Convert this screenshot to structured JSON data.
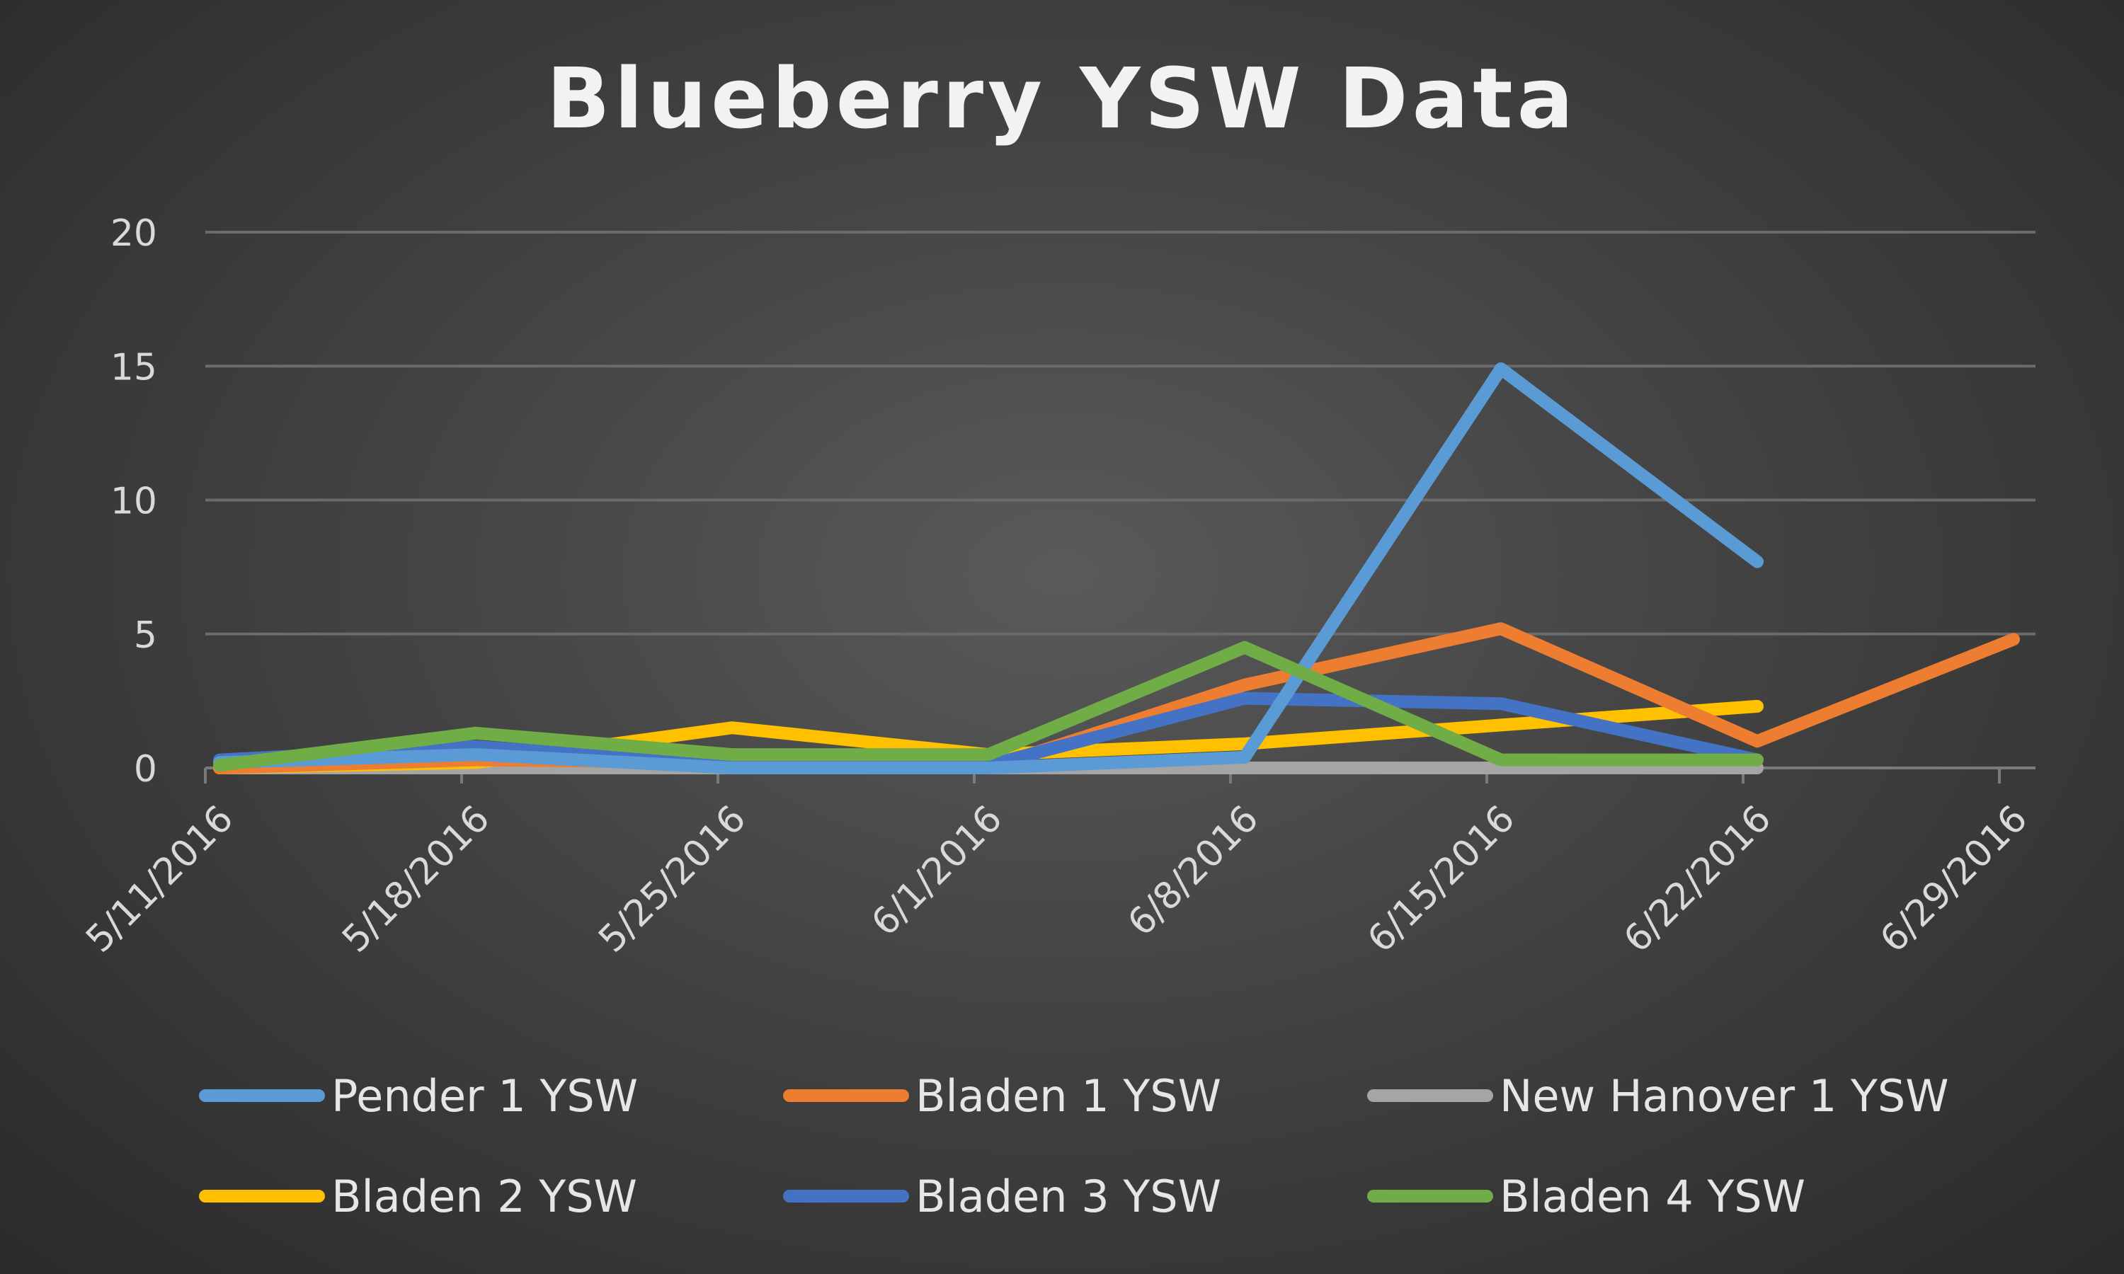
{
  "chart_data": {
    "type": "line",
    "title": "Blueberry YSW Data",
    "xlabel": "",
    "ylabel": "",
    "ylim": [
      0,
      20
    ],
    "yticks": [
      "0",
      "5",
      "10",
      "15",
      "20"
    ],
    "categories": [
      "5/11/2016",
      "5/18/2016",
      "5/25/2016",
      "6/1/2016",
      "6/8/2016",
      "6/15/2016",
      "6/22/2016",
      "6/29/2016"
    ],
    "grid": true,
    "legend_position": "bottom",
    "series": [
      {
        "name": "Pender 1 YSW",
        "color": "#5b9bd5",
        "values": [
          0.2,
          0.5,
          0.0,
          0.0,
          0.4,
          14.9,
          7.7,
          null
        ]
      },
      {
        "name": "Bladen 1 YSW",
        "color": "#ed7d31",
        "values": [
          0.0,
          0.3,
          0.2,
          0.0,
          3.1,
          5.2,
          1.0,
          4.8
        ]
      },
      {
        "name": "New Hanover 1 YSW",
        "color": "#a5a5a5",
        "values": [
          0.0,
          0.0,
          0.0,
          0.0,
          0.0,
          0.0,
          0.0,
          null
        ]
      },
      {
        "name": "Bladen 2 YSW",
        "color": "#ffc000",
        "values": [
          0.0,
          0.2,
          1.5,
          0.5,
          0.9,
          1.6,
          2.3,
          null
        ]
      },
      {
        "name": "Bladen 3 YSW",
        "color": "#4472c4",
        "values": [
          0.3,
          0.8,
          0.1,
          0.1,
          2.6,
          2.4,
          0.3,
          null
        ]
      },
      {
        "name": "Bladen 4 YSW",
        "color": "#70ad47",
        "values": [
          0.1,
          1.3,
          0.5,
          0.5,
          4.5,
          0.3,
          0.3,
          null
        ]
      }
    ]
  }
}
